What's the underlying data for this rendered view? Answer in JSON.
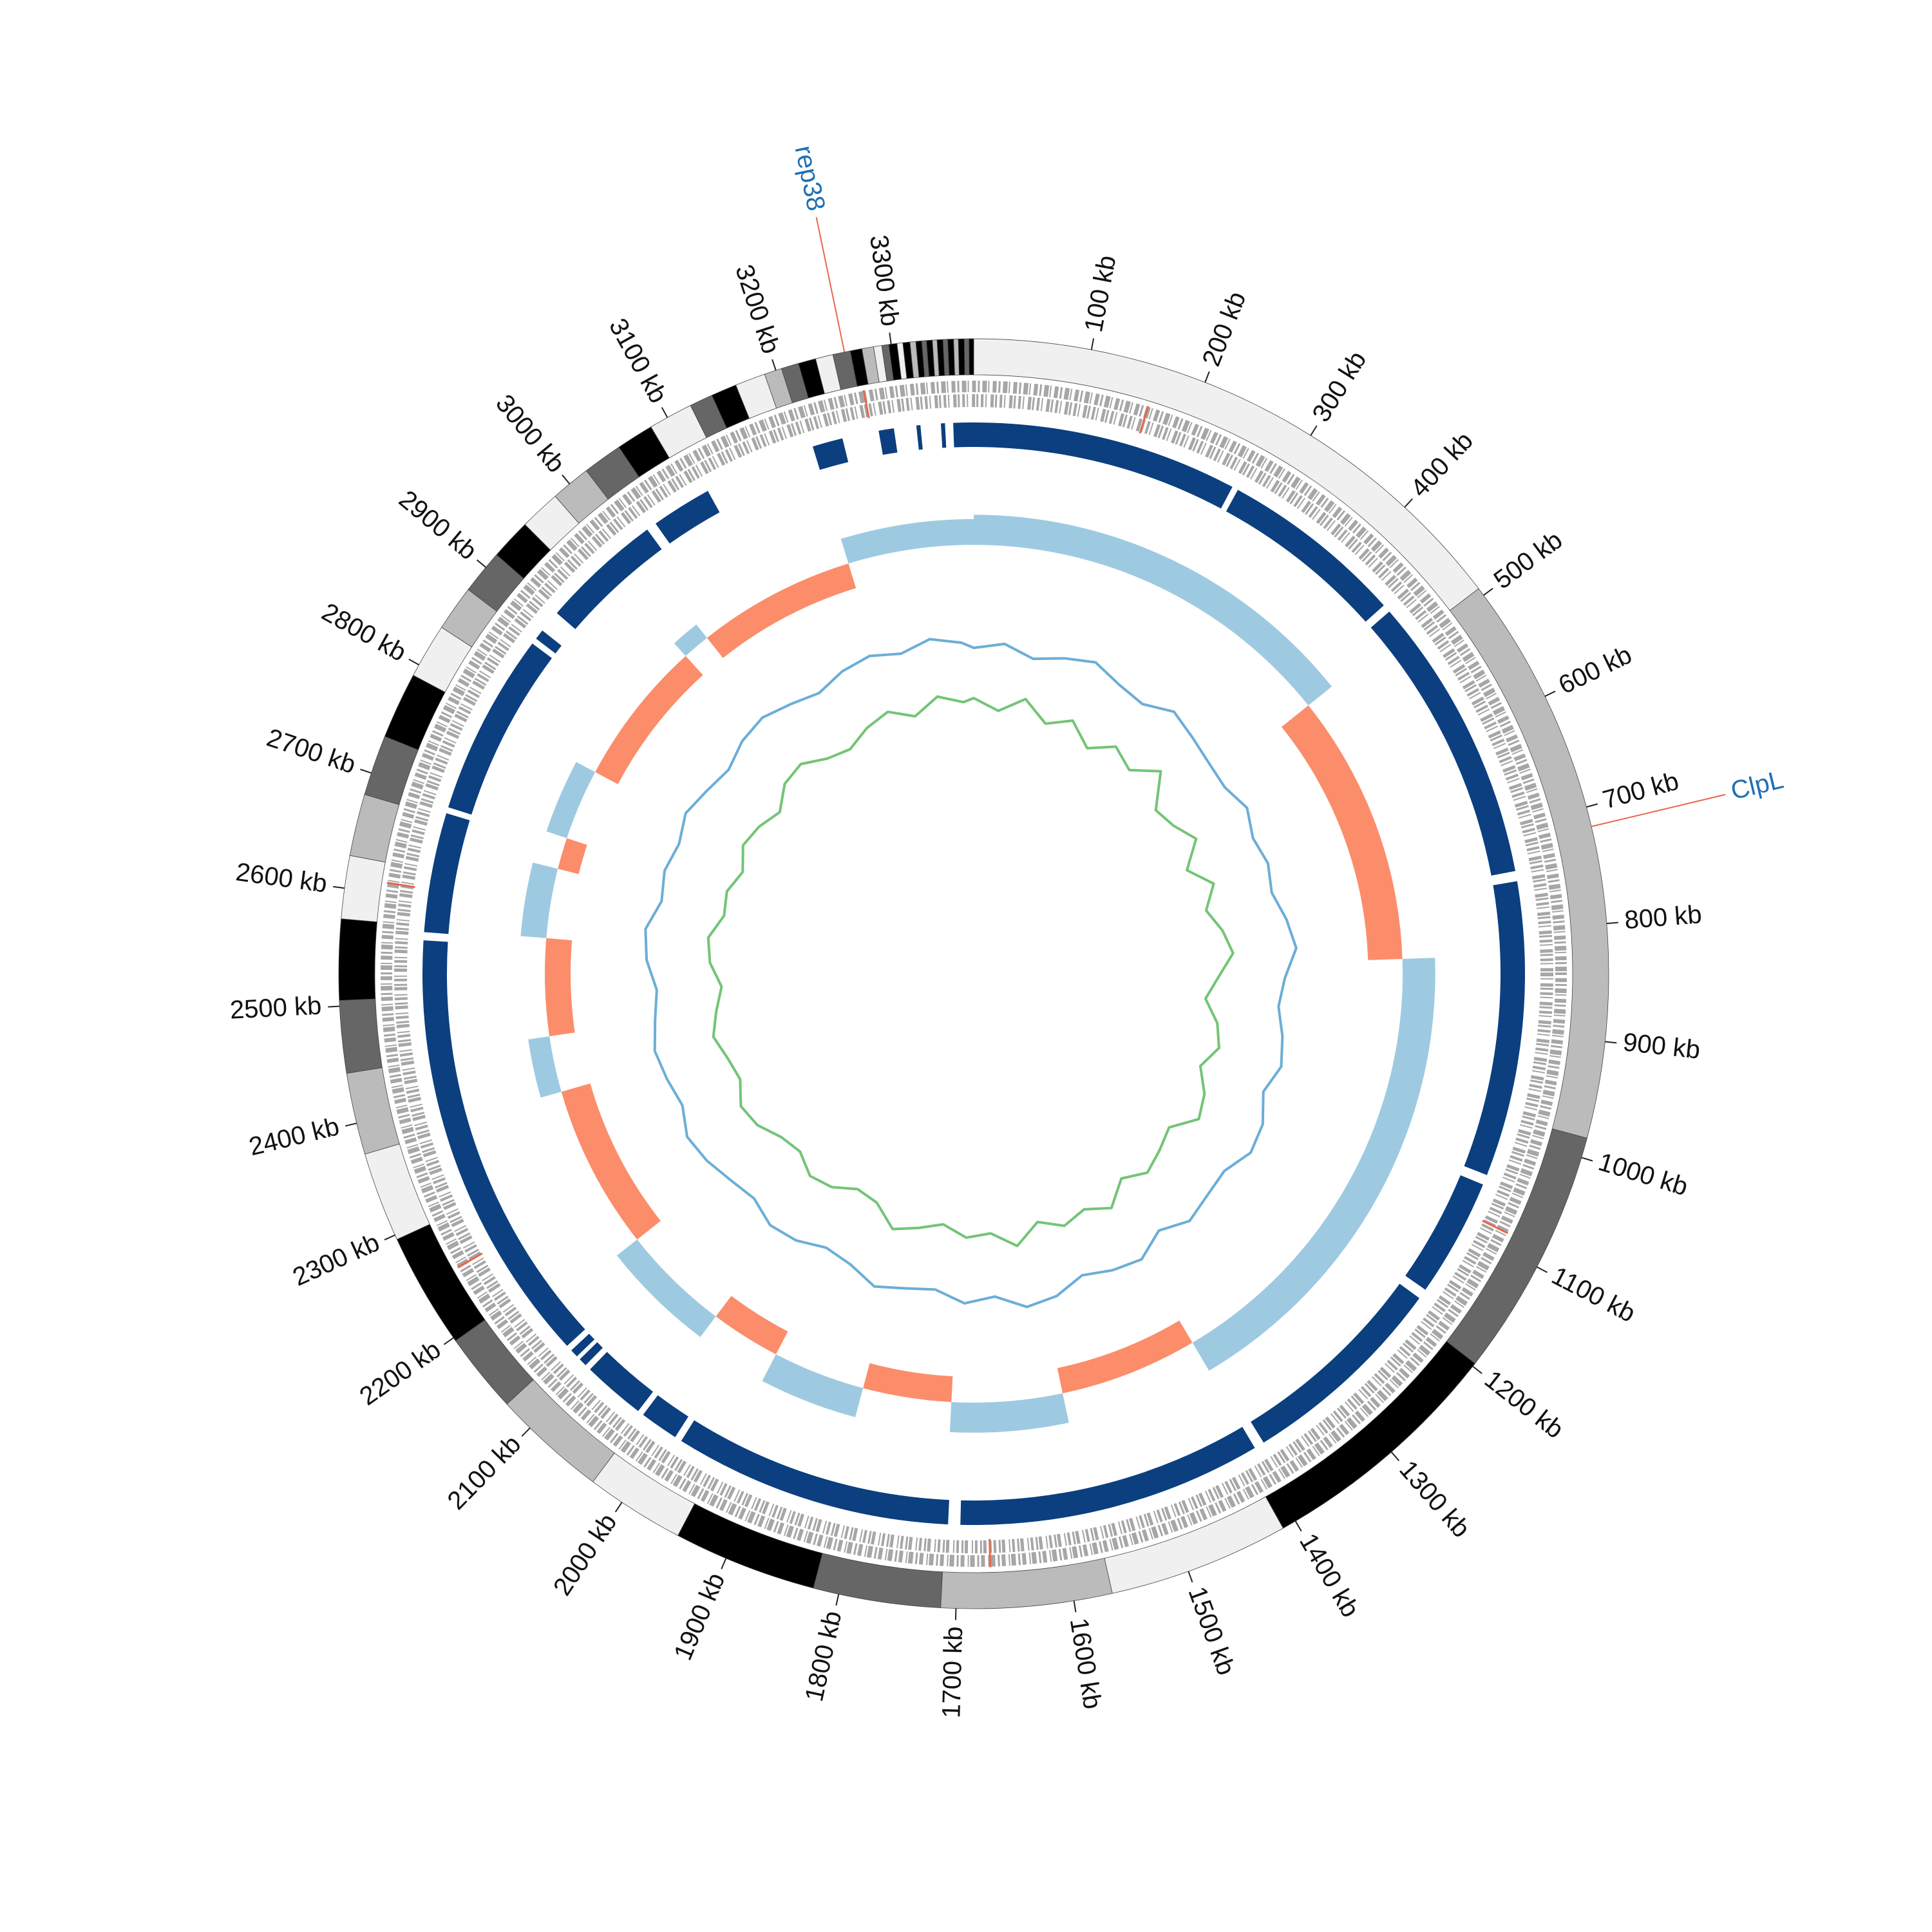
{
  "chart_data": {
    "type": "circos",
    "xlim": [
      0,
      3370
    ],
    "xticks": [
      {
        "value": 100,
        "label": "100 kb"
      },
      {
        "value": 200,
        "label": "200 kb"
      },
      {
        "value": 300,
        "label": "300 kb"
      },
      {
        "value": 400,
        "label": "400 kb"
      },
      {
        "value": 500,
        "label": "500 kb"
      },
      {
        "value": 600,
        "label": "600 kb"
      },
      {
        "value": 700,
        "label": "700 kb"
      },
      {
        "value": 800,
        "label": "800 kb"
      },
      {
        "value": 900,
        "label": "900 kb"
      },
      {
        "value": 1000,
        "label": "1000 kb"
      },
      {
        "value": 1100,
        "label": "1100 kb"
      },
      {
        "value": 1200,
        "label": "1200 kb"
      },
      {
        "value": 1300,
        "label": "1300 kb"
      },
      {
        "value": 1400,
        "label": "1400 kb"
      },
      {
        "value": 1500,
        "label": "1500 kb"
      },
      {
        "value": 1600,
        "label": "1600 kb"
      },
      {
        "value": 1700,
        "label": "1700 kb"
      },
      {
        "value": 1800,
        "label": "1800 kb"
      },
      {
        "value": 1900,
        "label": "1900 kb"
      },
      {
        "value": 2000,
        "label": "2000 kb"
      },
      {
        "value": 2100,
        "label": "2100 kb"
      },
      {
        "value": 2200,
        "label": "2200 kb"
      },
      {
        "value": 2300,
        "label": "2300 kb"
      },
      {
        "value": 2400,
        "label": "2400 kb"
      },
      {
        "value": 2500,
        "label": "2500 kb"
      },
      {
        "value": 2600,
        "label": "2600 kb"
      },
      {
        "value": 2700,
        "label": "2700 kb"
      },
      {
        "value": 2800,
        "label": "2800 kb"
      },
      {
        "value": 2900,
        "label": "2900 kb"
      },
      {
        "value": 3000,
        "label": "3000 kb"
      },
      {
        "value": 3100,
        "label": "3100 kb"
      },
      {
        "value": 3200,
        "label": "3200 kb"
      },
      {
        "value": 3300,
        "label": "3300 kb"
      }
    ],
    "annotations": [
      {
        "label": "rep38",
        "position": 3260
      },
      {
        "label": "ClpL",
        "position": 717
      }
    ],
    "annotation_colors": {
      "line": "#e8684a",
      "text": "#1f6fb4"
    },
    "ideogram": [
      [
        0,
        493,
        "#f0f0f0"
      ],
      [
        493,
        983,
        "#bbbbbb"
      ],
      [
        983,
        1197,
        "#666666"
      ],
      [
        1197,
        1412,
        "#000000"
      ],
      [
        1412,
        1567,
        "#f0f0f0"
      ],
      [
        1567,
        1713,
        "#bbbbbb"
      ],
      [
        1713,
        1822,
        "#666666"
      ],
      [
        1822,
        1945,
        "#000000"
      ],
      [
        1945,
        2030,
        "#f0f0f0"
      ],
      [
        2030,
        2128,
        "#bbbbbb"
      ],
      [
        2128,
        2197,
        "#666666"
      ],
      [
        2197,
        2296,
        "#000000"
      ],
      [
        2296,
        2373,
        "#f0f0f0"
      ],
      [
        2373,
        2443,
        "#bbbbbb"
      ],
      [
        2443,
        2505,
        "#666666"
      ],
      [
        2505,
        2574,
        "#000000"
      ],
      [
        2574,
        2628,
        "#f0f0f0"
      ],
      [
        2628,
        2681,
        "#bbbbbb"
      ],
      [
        2681,
        2733,
        "#666666"
      ],
      [
        2733,
        2790,
        "#000000"
      ],
      [
        2790,
        2837,
        "#f0f0f0"
      ],
      [
        2837,
        2876,
        "#bbbbbb"
      ],
      [
        2876,
        2914,
        "#666666"
      ],
      [
        2914,
        2949,
        "#000000"
      ],
      [
        2949,
        2984,
        "#f0f0f0"
      ],
      [
        2984,
        3018,
        "#bbbbbb"
      ],
      [
        3018,
        3052,
        "#666666"
      ],
      [
        3052,
        3084,
        "#000000"
      ],
      [
        3084,
        3122,
        "#f0f0f0"
      ],
      [
        3122,
        3142,
        "#666666"
      ],
      [
        3142,
        3164,
        "#000000"
      ],
      [
        3164,
        3190,
        "#f0f0f0"
      ],
      [
        3190,
        3205,
        "#bbbbbb"
      ],
      [
        3205,
        3220,
        "#666666"
      ],
      [
        3220,
        3235,
        "#000000"
      ],
      [
        3235,
        3250,
        "#f0f0f0"
      ],
      [
        3250,
        3265,
        "#666666"
      ],
      [
        3265,
        3275,
        "#000000"
      ],
      [
        3275,
        3285,
        "#bbbbbb"
      ],
      [
        3285,
        3292,
        "#f0f0f0"
      ],
      [
        3292,
        3298,
        "#666666"
      ],
      [
        3298,
        3305,
        "#000000"
      ],
      [
        3305,
        3310,
        "#f0f0f0"
      ],
      [
        3310,
        3316,
        "#000000"
      ],
      [
        3316,
        3321,
        "#bbbbbb"
      ],
      [
        3321,
        3326,
        "#000000"
      ],
      [
        3326,
        3330,
        "#666666"
      ],
      [
        3330,
        3335,
        "#000000"
      ],
      [
        3335,
        3339,
        "#bbbbbb"
      ],
      [
        3339,
        3344,
        "#000000"
      ],
      [
        3344,
        3348,
        "#666666"
      ],
      [
        3348,
        3353,
        "#000000"
      ],
      [
        3353,
        3357,
        "#bbbbbb"
      ],
      [
        3357,
        3362,
        "#000000"
      ],
      [
        3362,
        3366,
        "#666666"
      ],
      [
        3366,
        3370,
        "#000000"
      ]
    ],
    "features": {
      "color": "#e8684a",
      "positions": [
        160,
        3270,
        2250,
        2610,
        1085,
        1670
      ]
    },
    "blocks": {
      "color": "#0b3f7f",
      "segments": [
        [
          0,
          262
        ],
        [
          268,
          450
        ],
        [
          458,
          742
        ],
        [
          752,
          1043
        ],
        [
          1053,
          1170
        ],
        [
          1180,
          1388
        ],
        [
          1398,
          1698
        ],
        [
          1710,
          1985
        ],
        [
          1992,
          2030
        ],
        [
          2036,
          2098
        ],
        [
          2104,
          2112
        ],
        [
          2116,
          2124
        ],
        [
          2130,
          2560
        ],
        [
          2568,
          2686
        ],
        [
          2692,
          2872
        ],
        [
          2878,
          2888
        ],
        [
          2910,
          3030
        ],
        [
          3040,
          3100
        ],
        [
          3211,
          3241
        ],
        [
          3277,
          3292
        ],
        [
          3314,
          3318
        ],
        [
          3338,
          3342
        ],
        [
          3350,
          3370
        ]
      ]
    },
    "gc_skew": {
      "ylim": [
        -0.06,
        0.06
      ],
      "positive_color": "#9ecae1",
      "negative_color": "#fc8d6a",
      "regions": [
        [
          0,
          480,
          0.035
        ],
        [
          480,
          824,
          -0.04
        ],
        [
          824,
          1398,
          0.038
        ],
        [
          1398,
          1573,
          -0.03
        ],
        [
          1573,
          1713,
          0.035
        ],
        [
          1713,
          1825,
          -0.03
        ],
        [
          1825,
          1942,
          0.035
        ],
        [
          1942,
          2031,
          -0.03
        ],
        [
          2031,
          2169,
          0.03
        ],
        [
          2169,
          2378,
          -0.035
        ],
        [
          2378,
          2449,
          0.025
        ],
        [
          2449,
          2572,
          -0.03
        ],
        [
          2572,
          2660,
          0.03
        ],
        [
          2660,
          2700,
          -0.025
        ],
        [
          2700,
          2790,
          0.025
        ],
        [
          2790,
          2975,
          -0.03
        ],
        [
          2975,
          3010,
          0.02
        ],
        [
          3010,
          3211,
          -0.03
        ],
        [
          3211,
          3370,
          0.03
        ]
      ]
    },
    "gc_content": {
      "ylim": [
        -1,
        1
      ],
      "x": [
        0,
        50,
        100,
        150,
        200,
        250,
        300,
        350,
        400,
        450,
        500,
        550,
        600,
        650,
        700,
        750,
        800,
        850,
        900,
        950,
        1000,
        1050,
        1100,
        1150,
        1200,
        1250,
        1300,
        1350,
        1400,
        1450,
        1500,
        1550,
        1600,
        1650,
        1700,
        1750,
        1800,
        1850,
        1900,
        1950,
        2000,
        2050,
        2100,
        2150,
        2200,
        2250,
        2300,
        2350,
        2400,
        2450,
        2500,
        2550,
        2600,
        2650,
        2700,
        2750,
        2800,
        2850,
        2900,
        2950,
        3000,
        3050,
        3100,
        3150,
        3200,
        3250,
        3300,
        3350
      ],
      "series": [
        {
          "color": "#6baed6",
          "values": [
            0.55,
            0.62,
            0.48,
            0.58,
            0.66,
            0.52,
            0.45,
            0.6,
            0.5,
            0.42,
            0.38,
            0.47,
            0.35,
            0.4,
            0.33,
            0.44,
            0.52,
            0.36,
            0.3,
            0.41,
            0.49,
            0.38,
            0.55,
            0.6,
            0.46,
            0.5,
            0.58,
            0.43,
            0.62,
            0.57,
            0.48,
            0.64,
            0.7,
            0.52,
            0.6,
            0.45,
            0.5,
            0.58,
            0.42,
            0.36,
            0.48,
            0.52,
            0.4,
            0.46,
            0.55,
            0.6,
            0.47,
            0.53,
            0.58,
            0.5,
            0.44,
            0.57,
            0.62,
            0.48,
            0.55,
            0.5,
            0.6,
            0.52,
            0.46,
            0.58,
            0.63,
            0.55,
            0.48,
            0.6,
            0.66,
            0.58,
            0.7,
            0.62
          ]
        },
        {
          "color": "#74c476",
          "values": [
            -0.1,
            -0.25,
            -0.05,
            -0.3,
            -0.15,
            -0.4,
            -0.2,
            -0.35,
            -0.1,
            -0.5,
            -0.45,
            -0.3,
            -0.6,
            -0.35,
            -0.55,
            -0.4,
            -0.3,
            -0.5,
            -0.65,
            -0.45,
            -0.35,
            -0.5,
            -0.3,
            -0.2,
            -0.45,
            -0.35,
            -0.25,
            -0.4,
            -0.15,
            -0.3,
            -0.2,
            -0.35,
            -0.1,
            -0.3,
            -0.25,
            -0.4,
            -0.3,
            -0.2,
            -0.45,
            -0.5,
            -0.35,
            -0.3,
            -0.45,
            -0.4,
            -0.25,
            -0.2,
            -0.35,
            -0.3,
            -0.2,
            -0.3,
            -0.4,
            -0.25,
            -0.2,
            -0.35,
            -0.3,
            -0.4,
            -0.25,
            -0.3,
            -0.4,
            -0.2,
            -0.15,
            -0.3,
            -0.35,
            -0.2,
            -0.1,
            -0.25,
            -0.05,
            -0.15
          ]
        }
      ]
    }
  }
}
